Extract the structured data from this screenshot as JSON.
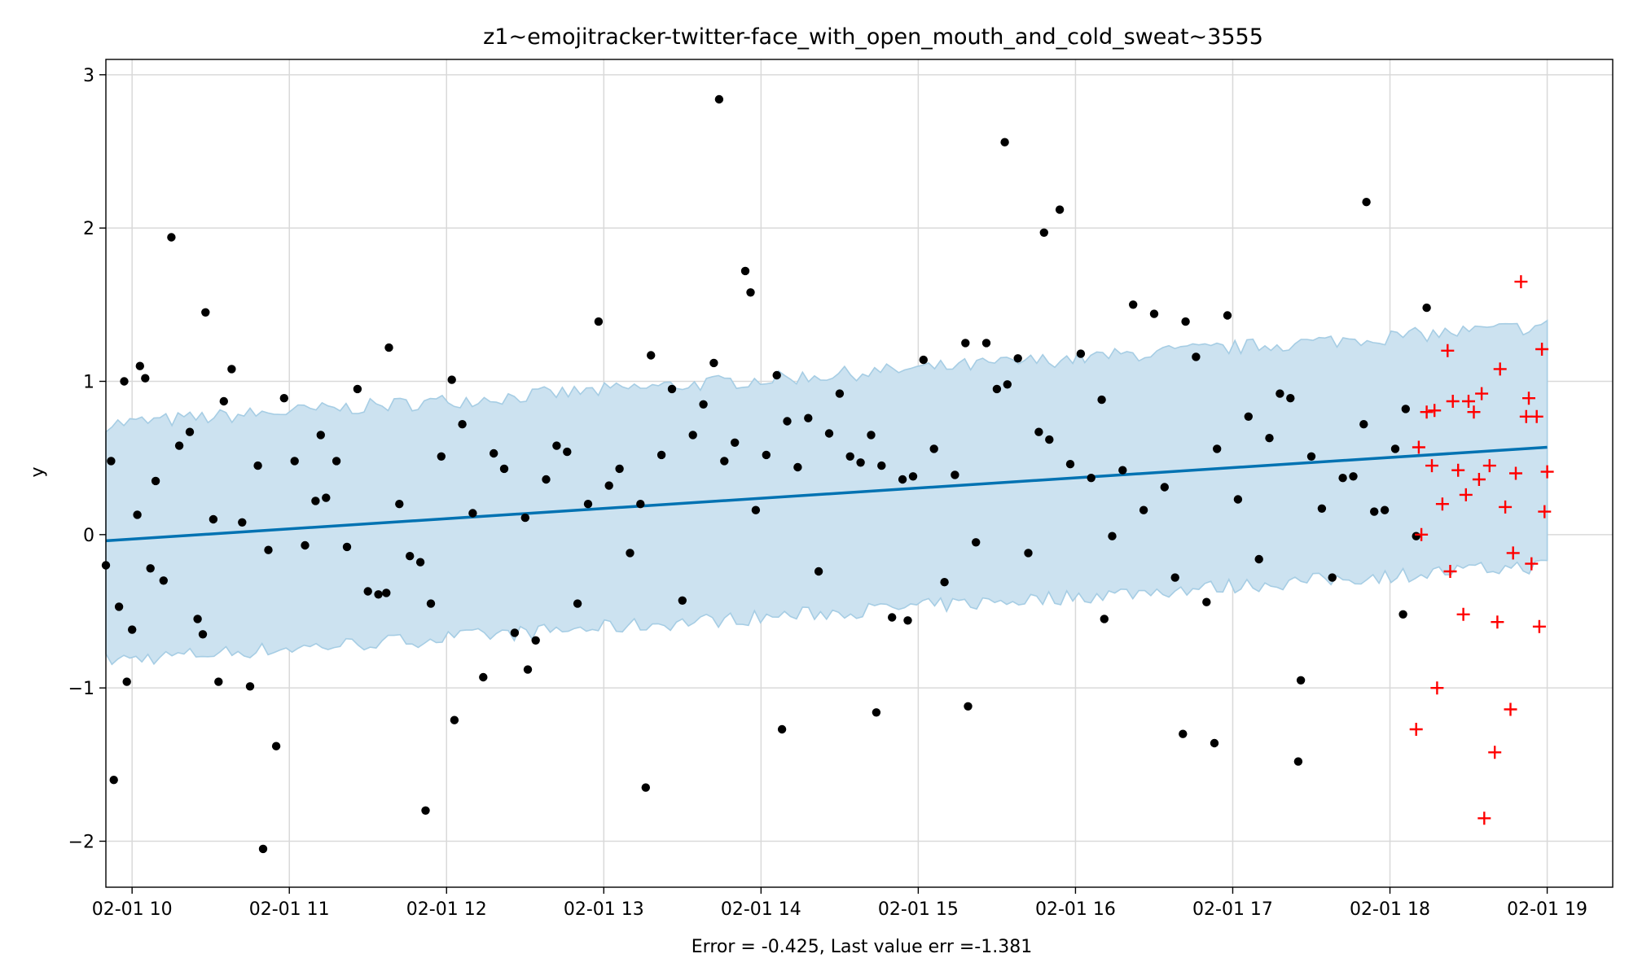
{
  "chart_data": {
    "type": "scatter",
    "title": "z1~emojitracker-twitter-face_with_open_mouth_and_cold_sweat~3555",
    "xlabel": "Error = -0.425, Last value err =-1.381",
    "ylabel": "y",
    "x_axis_kind": "datetime-hours",
    "xlim": [
      "02-01 09:50",
      "02-01 19:25"
    ],
    "ylim": [
      -2.3,
      3.1
    ],
    "x_ticks": [
      "02-01 10",
      "02-01 11",
      "02-01 12",
      "02-01 13",
      "02-01 14",
      "02-01 15",
      "02-01 16",
      "02-01 17",
      "02-01 18",
      "02-01 19"
    ],
    "y_ticks": [
      {
        "value": -2,
        "label": "−2"
      },
      {
        "value": -1,
        "label": "−1"
      },
      {
        "value": 0,
        "label": "0"
      },
      {
        "value": 1,
        "label": "1"
      },
      {
        "value": 2,
        "label": "2"
      },
      {
        "value": 3,
        "label": "3"
      }
    ],
    "grid": true,
    "colors": {
      "observed": "#000000",
      "forecast_line": "#0072b2",
      "band_fill": "#cce2f0",
      "band_edge": "#a6cde4",
      "test_marker": "#ff0000",
      "grid": "#d9d9d9"
    },
    "forecast_line": {
      "x": [
        "02-01 09:50",
        "02-01 19:00"
      ],
      "y": [
        -0.04,
        0.57
      ]
    },
    "band": {
      "x": [
        "02-01 09:50",
        "02-01 19:00"
      ],
      "lower": [
        -0.82,
        -0.2
      ],
      "upper": [
        0.72,
        1.36
      ]
    },
    "series": [
      {
        "marker": "dot",
        "x": [
          "02-01 09:50",
          "02-01 09:52",
          "02-01 09:55",
          "02-01 09:57",
          "02-01 10:00",
          "02-01 10:02",
          "02-01 10:05",
          "02-01 10:07",
          "02-01 10:12",
          "02-01 10:15",
          "02-01 10:18",
          "02-01 10:22",
          "02-01 10:25",
          "02-01 10:28",
          "02-01 10:31",
          "02-01 10:35",
          "02-01 10:38",
          "02-01 10:42",
          "02-01 10:45",
          "02-01 10:48",
          "02-01 10:52",
          "02-01 10:55",
          "02-01 10:58",
          "02-01 11:02",
          "02-01 11:06",
          "02-01 11:10",
          "02-01 11:14",
          "02-01 11:18",
          "02-01 11:22",
          "02-01 11:26",
          "02-01 11:30",
          "02-01 11:34",
          "02-01 11:38",
          "02-01 11:42",
          "02-01 11:46",
          "02-01 11:50",
          "02-01 11:54",
          "02-01 11:58",
          "02-01 12:02",
          "02-01 12:06",
          "02-01 12:10",
          "02-01 12:14",
          "02-01 12:18",
          "02-01 12:22",
          "02-01 12:26",
          "02-01 12:30",
          "02-01 12:34",
          "02-01 12:38",
          "02-01 12:42",
          "02-01 12:46",
          "02-01 12:50",
          "02-01 12:54",
          "02-01 12:58",
          "02-01 13:02",
          "02-01 13:06",
          "02-01 13:10",
          "02-01 13:14",
          "02-01 13:18",
          "02-01 13:22",
          "02-01 13:26",
          "02-01 13:30",
          "02-01 13:34",
          "02-01 13:38",
          "02-01 13:42",
          "02-01 13:46",
          "02-01 13:50",
          "02-01 13:54",
          "02-01 13:58",
          "02-01 14:02",
          "02-01 14:06",
          "02-01 14:10",
          "02-01 14:14",
          "02-01 14:18",
          "02-01 14:22",
          "02-01 14:26",
          "02-01 14:30",
          "02-01 14:34",
          "02-01 14:38",
          "02-01 14:42",
          "02-01 14:46",
          "02-01 14:50",
          "02-01 14:54",
          "02-01 14:58",
          "02-01 15:02",
          "02-01 15:06",
          "02-01 15:10",
          "02-01 15:14",
          "02-01 15:18",
          "02-01 15:22",
          "02-01 15:26",
          "02-01 15:30",
          "02-01 15:34",
          "02-01 15:38",
          "02-01 15:42",
          "02-01 15:46",
          "02-01 15:50",
          "02-01 15:54",
          "02-01 15:58",
          "02-01 16:02",
          "02-01 16:06",
          "02-01 16:10",
          "02-01 16:14",
          "02-01 16:18",
          "02-01 16:22",
          "02-01 16:26",
          "02-01 16:30",
          "02-01 16:34",
          "02-01 16:38",
          "02-01 16:42",
          "02-01 16:46",
          "02-01 16:50",
          "02-01 16:54",
          "02-01 16:58",
          "02-01 17:02",
          "02-01 17:06",
          "02-01 17:10",
          "02-01 17:14",
          "02-01 17:18",
          "02-01 17:22",
          "02-01 17:26",
          "02-01 17:30",
          "02-01 17:34",
          "02-01 17:38",
          "02-01 17:42",
          "02-01 17:46",
          "02-01 17:50",
          "02-01 17:54",
          "02-01 17:58",
          "02-01 18:02",
          "02-01 18:06",
          "02-01 18:10",
          "02-01 18:14",
          "02-01 09:53",
          "02-01 09:58",
          "02-01 10:03",
          "02-01 10:09",
          "02-01 10:27",
          "02-01 10:33",
          "02-01 10:50",
          "02-01 11:12",
          "02-01 11:37",
          "02-01 11:52",
          "02-01 12:03",
          "02-01 12:31",
          "02-01 13:16",
          "02-01 13:44",
          "02-01 13:56",
          "02-01 14:08",
          "02-01 14:44",
          "02-01 14:56",
          "02-01 15:19",
          "02-01 15:33",
          "02-01 15:48",
          "02-01 16:11",
          "02-01 16:41",
          "02-01 16:53",
          "02-01 17:25",
          "02-01 17:51",
          "02-01 18:05"
        ],
        "y": [
          -0.2,
          0.48,
          -0.47,
          1.0,
          -0.62,
          0.13,
          1.02,
          -0.22,
          -0.3,
          1.94,
          0.58,
          0.67,
          -0.55,
          1.45,
          0.1,
          0.87,
          1.08,
          0.08,
          -0.99,
          0.45,
          -0.1,
          -1.38,
          0.89,
          0.48,
          -0.07,
          0.22,
          0.24,
          0.48,
          -0.08,
          0.95,
          -0.37,
          -0.39,
          1.22,
          0.2,
          -0.14,
          -0.18,
          -0.45,
          0.51,
          1.01,
          0.72,
          0.14,
          -0.93,
          0.53,
          0.43,
          -0.64,
          0.11,
          -0.69,
          0.36,
          0.58,
          0.54,
          -0.45,
          0.2,
          1.39,
          0.32,
          0.43,
          -0.12,
          0.2,
          1.17,
          0.52,
          0.95,
          -0.43,
          0.65,
          0.85,
          1.12,
          0.48,
          0.6,
          1.72,
          0.16,
          0.52,
          1.04,
          0.74,
          0.44,
          0.76,
          -0.24,
          0.66,
          0.92,
          0.51,
          0.47,
          0.65,
          0.45,
          -0.54,
          0.36,
          0.38,
          1.14,
          0.56,
          -0.31,
          0.39,
          1.25,
          -0.05,
          1.25,
          0.95,
          0.98,
          1.15,
          -0.12,
          0.67,
          0.62,
          2.12,
          0.46,
          1.18,
          0.37,
          0.88,
          -0.01,
          0.42,
          1.5,
          0.16,
          1.44,
          0.31,
          -0.28,
          1.39,
          1.16,
          -0.44,
          0.56,
          1.43,
          0.23,
          0.77,
          -0.16,
          0.63,
          0.92,
          0.89,
          -0.95,
          0.51,
          0.17,
          -0.28,
          0.37,
          0.38,
          0.72,
          0.15,
          0.16,
          0.56,
          0.82,
          -0.01,
          1.48,
          -1.6,
          -0.96,
          1.1,
          0.35,
          -0.65,
          -0.96,
          -2.05,
          0.65,
          -0.38,
          -1.8,
          -1.21,
          -0.88,
          -1.65,
          2.84,
          1.58,
          -1.27,
          -1.16,
          -0.56,
          -1.12,
          2.56,
          1.97,
          -0.55,
          -1.3,
          -1.36,
          -1.48,
          2.17,
          -0.52
        ]
      },
      {
        "marker": "plus",
        "x": [
          "02-01 18:10",
          "02-01 18:12",
          "02-01 18:14",
          "02-01 18:16",
          "02-01 18:18",
          "02-01 18:20",
          "02-01 18:22",
          "02-01 18:24",
          "02-01 18:26",
          "02-01 18:28",
          "02-01 18:30",
          "02-01 18:32",
          "02-01 18:34",
          "02-01 18:36",
          "02-01 18:38",
          "02-01 18:40",
          "02-01 18:42",
          "02-01 18:44",
          "02-01 18:46",
          "02-01 18:48",
          "02-01 18:50",
          "02-01 18:52",
          "02-01 18:54",
          "02-01 18:56",
          "02-01 18:58",
          "02-01 19:00",
          "02-01 18:11",
          "02-01 18:17",
          "02-01 18:23",
          "02-01 18:29",
          "02-01 18:35",
          "02-01 18:41",
          "02-01 18:47",
          "02-01 18:53",
          "02-01 18:57",
          "02-01 18:59"
        ],
        "y": [
          -1.27,
          0.0,
          0.8,
          0.45,
          -1.0,
          0.2,
          1.2,
          0.87,
          0.42,
          -0.52,
          0.87,
          0.8,
          0.36,
          -1.85,
          0.45,
          -1.42,
          1.08,
          0.18,
          -1.14,
          0.4,
          1.65,
          0.77,
          -0.19,
          0.77,
          1.21,
          0.41,
          0.57,
          0.81,
          -0.24,
          0.26,
          0.92,
          -0.57,
          -0.12,
          0.89,
          -0.6,
          0.15
        ]
      }
    ]
  }
}
